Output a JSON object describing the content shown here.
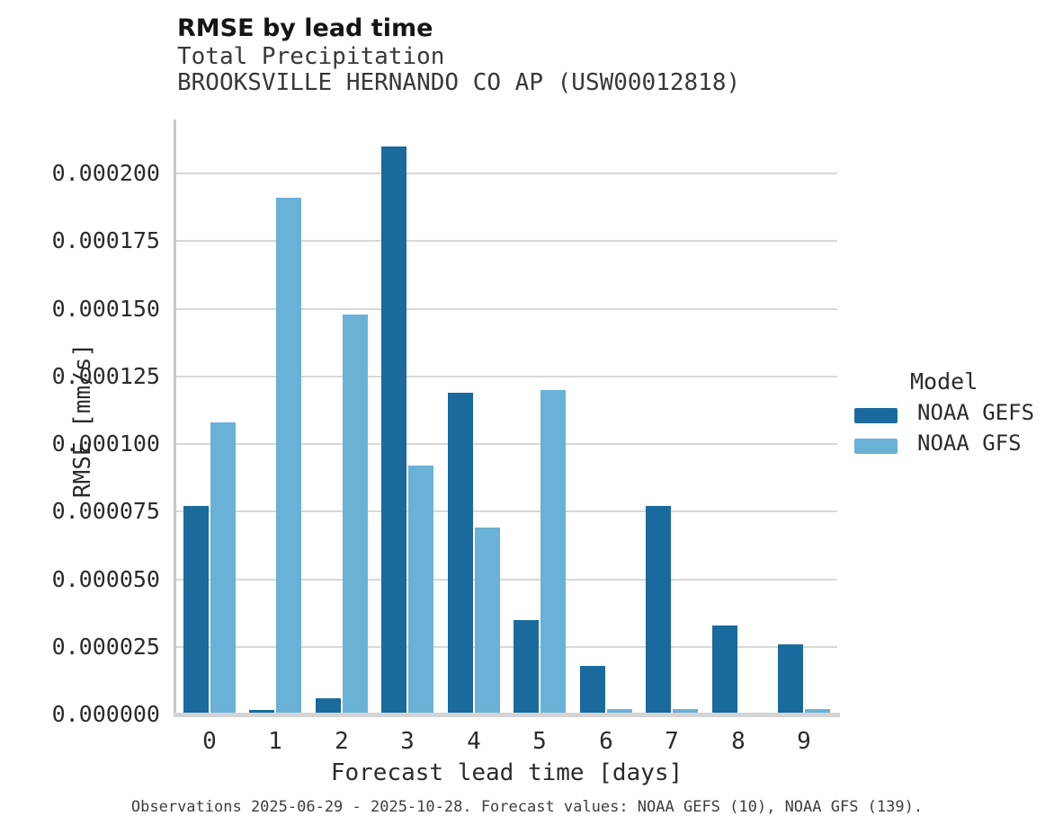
{
  "header": {
    "title": "RMSE by lead time",
    "subtitle": "Total Precipitation",
    "station": "BROOKSVILLE HERNANDO CO AP (USW00012818)"
  },
  "chart_data": {
    "type": "bar",
    "title": "RMSE by lead time",
    "subtitle": "Total Precipitation",
    "station": "BROOKSVILLE HERNANDO CO AP (USW00012818)",
    "categories": [
      "0",
      "1",
      "2",
      "3",
      "4",
      "5",
      "6",
      "7",
      "8",
      "9"
    ],
    "series": [
      {
        "name": "NOAA GEFS",
        "color": "#1a6a9e",
        "values": [
          7.7e-05,
          1.5e-06,
          6e-06,
          0.00021,
          0.000119,
          3.5e-05,
          1.8e-05,
          7.7e-05,
          3.3e-05,
          2.6e-05
        ]
      },
      {
        "name": "NOAA GFS",
        "color": "#6ab1d8",
        "values": [
          0.000108,
          0.000191,
          0.000148,
          9.2e-05,
          6.9e-05,
          0.00012,
          2e-06,
          2e-06,
          0,
          2e-06
        ]
      }
    ],
    "xlabel": "Forecast lead time [days]",
    "ylabel": "RMSE [mm/s]",
    "ylim": [
      0,
      0.00022
    ],
    "yticks": [
      0,
      2.5e-05,
      5e-05,
      7.5e-05,
      0.0001,
      0.000125,
      0.00015,
      0.000175,
      0.0002
    ],
    "ytick_labels": [
      "0.000000",
      "0.000025",
      "0.000050",
      "0.000075",
      "0.000100",
      "0.000125",
      "0.000150",
      "0.000175",
      "0.000200"
    ],
    "legend": {
      "title": "Model",
      "position": "right"
    },
    "grid": "horizontal"
  },
  "footer": {
    "note": "Observations 2025-06-29 - 2025-10-28. Forecast values: NOAA GEFS (10), NOAA GFS (139)."
  }
}
